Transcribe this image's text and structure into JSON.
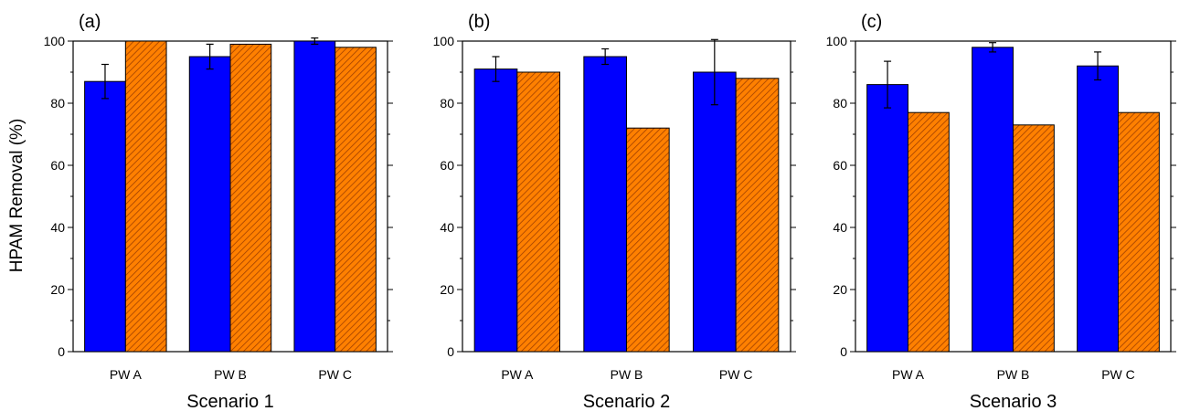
{
  "ylabel": "HPAM Removal  (%)",
  "colors": {
    "series_a": "#0000ff",
    "series_b": "#ff8000",
    "hatch": "#a04000",
    "axis": "#000000"
  },
  "chart_data": [
    {
      "type": "bar",
      "panel_label": "(a)",
      "xlabel": "Scenario 1",
      "categories": [
        "PW A",
        "PW B",
        "PW C"
      ],
      "ylim": [
        0,
        100
      ],
      "yticks": [
        0,
        20,
        40,
        60,
        80,
        100
      ],
      "series": [
        {
          "color": "#0000ff",
          "pattern": "solid",
          "values": [
            87,
            95,
            100
          ],
          "errors": [
            5.5,
            4,
            1
          ]
        },
        {
          "color": "#ff8000",
          "pattern": "hatched",
          "values": [
            100,
            99,
            98
          ]
        }
      ]
    },
    {
      "type": "bar",
      "panel_label": "(b)",
      "xlabel": "Scenario 2",
      "categories": [
        "PW A",
        "PW B",
        "PW C"
      ],
      "ylim": [
        0,
        100
      ],
      "yticks": [
        0,
        20,
        40,
        60,
        80,
        100
      ],
      "series": [
        {
          "color": "#0000ff",
          "pattern": "solid",
          "values": [
            91,
            95,
            90
          ],
          "errors": [
            4,
            2.5,
            10.5
          ]
        },
        {
          "color": "#ff8000",
          "pattern": "hatched",
          "values": [
            90,
            72,
            88
          ]
        }
      ]
    },
    {
      "type": "bar",
      "panel_label": "(c)",
      "xlabel": "Scenario 3",
      "categories": [
        "PW A",
        "PW B",
        "PW C"
      ],
      "ylim": [
        0,
        100
      ],
      "yticks": [
        0,
        20,
        40,
        60,
        80,
        100
      ],
      "series": [
        {
          "color": "#0000ff",
          "pattern": "solid",
          "values": [
            86,
            98,
            92
          ],
          "errors": [
            7.5,
            1.5,
            4.5
          ]
        },
        {
          "color": "#ff8000",
          "pattern": "hatched",
          "values": [
            77,
            73,
            77
          ]
        }
      ]
    }
  ]
}
